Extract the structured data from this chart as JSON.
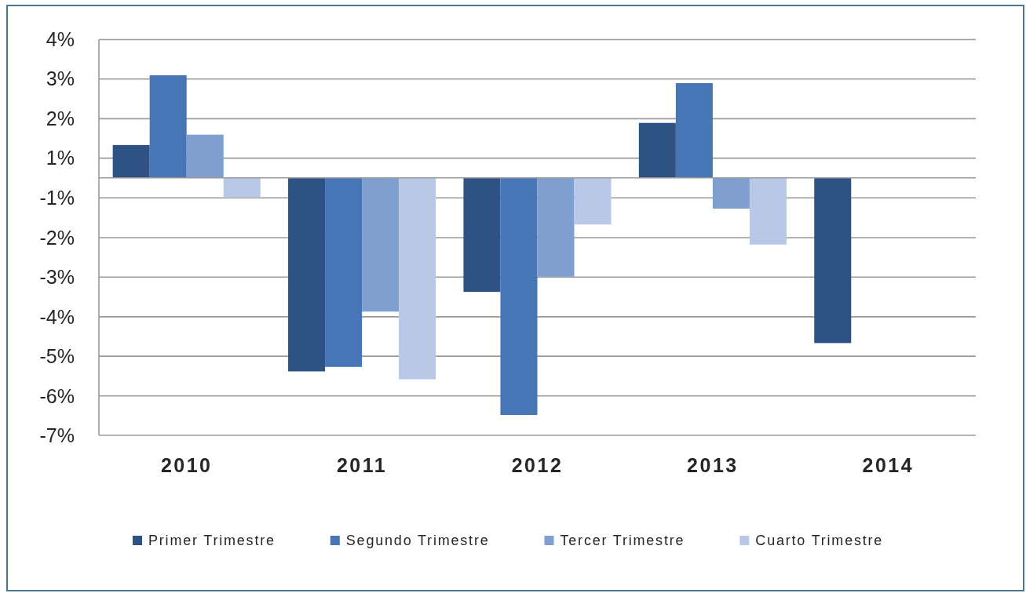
{
  "chart_data": {
    "type": "bar",
    "categories": [
      "2010",
      "2011",
      "2012",
      "2013",
      "2014"
    ],
    "series": [
      {
        "name": "Primer Trimestre",
        "color": "#2e5283",
        "values": [
          0.95,
          -5.6,
          -3.3,
          1.59,
          -4.78
        ]
      },
      {
        "name": "Segundo Trimestre",
        "color": "#4676b6",
        "values": [
          2.97,
          -5.47,
          -6.86,
          2.74,
          null
        ]
      },
      {
        "name": "Tercer Trimestre",
        "color": "#7f9fd1",
        "values": [
          1.25,
          -3.87,
          -2.86,
          -0.89,
          null
        ]
      },
      {
        "name": "Cuarto Trimestre",
        "color": "#b9c8e6",
        "values": [
          -0.57,
          -5.83,
          -1.35,
          -1.93,
          null
        ]
      }
    ],
    "ylim": [
      -7.45,
      4
    ],
    "yticks": [
      {
        "value": 4,
        "label": "4%"
      },
      {
        "value": 2.86,
        "label": "3%"
      },
      {
        "value": 1.71,
        "label": "2%"
      },
      {
        "value": 0.57,
        "label": "1%"
      },
      {
        "value": -0.58,
        "label": "-1%"
      },
      {
        "value": -1.73,
        "label": "-2%"
      },
      {
        "value": -2.87,
        "label": "-3%"
      },
      {
        "value": -4.02,
        "label": "-4%"
      },
      {
        "value": -5.16,
        "label": "-5%"
      },
      {
        "value": -6.31,
        "label": "-6%"
      },
      {
        "value": -7.45,
        "label": "-7%"
      }
    ],
    "grid": "y",
    "legend": "bottom"
  }
}
